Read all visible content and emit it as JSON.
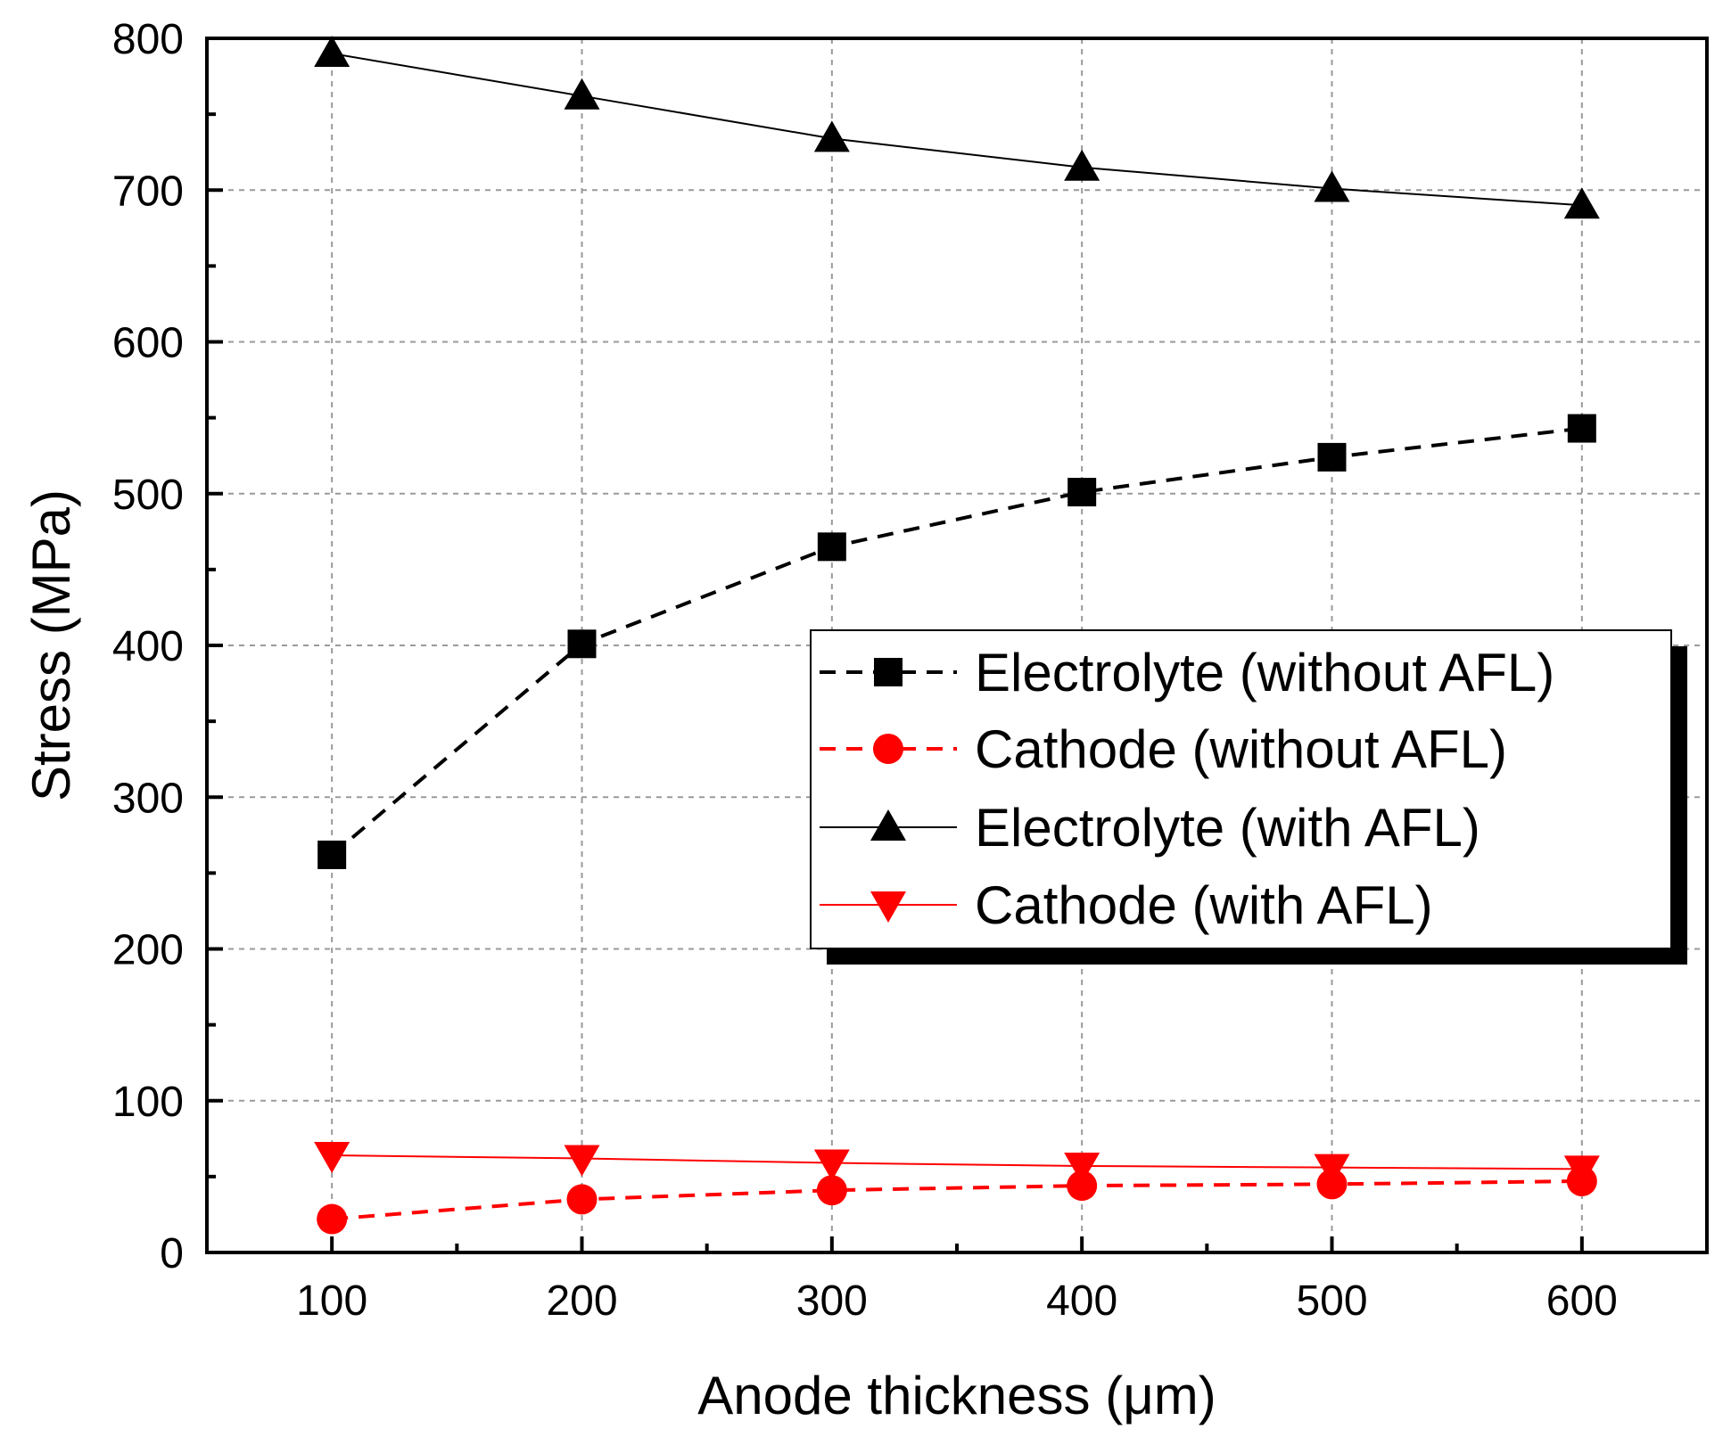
{
  "chart_data": {
    "type": "line",
    "title": "",
    "xlabel": "Anode thickness (μm)",
    "ylabel": "Stress (MPa)",
    "xlim": [
      50,
      650
    ],
    "ylim": [
      0,
      800
    ],
    "xticks": [
      100,
      200,
      300,
      400,
      500,
      600
    ],
    "xtick_labels": [
      "100",
      "200",
      "300",
      "400",
      "500",
      "600"
    ],
    "yticks": [
      0,
      100,
      200,
      300,
      400,
      500,
      600,
      700,
      800
    ],
    "ytick_labels": [
      "0",
      "100",
      "200",
      "300",
      "400",
      "500",
      "600",
      "700",
      "800"
    ],
    "grid": true,
    "legend_position": "center-right",
    "x": [
      100,
      200,
      300,
      400,
      500,
      600
    ],
    "series": [
      {
        "name": "Electrolyte (without AFL)",
        "values": [
          262,
          401,
          465,
          501,
          524,
          543
        ],
        "color": "#000000",
        "line_style": "dashed",
        "marker": "square"
      },
      {
        "name": "Cathode (without AFL)",
        "values": [
          22,
          35,
          41,
          44,
          45,
          47
        ],
        "color": "#ff0000",
        "line_style": "dashed",
        "marker": "circle"
      },
      {
        "name": "Electrolyte (with AFL)",
        "values": [
          790,
          762,
          734,
          715,
          701,
          690
        ],
        "color": "#000000",
        "line_style": "solid",
        "marker": "triangle-up"
      },
      {
        "name": "Cathode (with AFL)",
        "values": [
          64,
          62,
          59,
          57,
          56,
          55
        ],
        "color": "#ff0000",
        "line_style": "solid",
        "marker": "triangle-down"
      }
    ]
  }
}
